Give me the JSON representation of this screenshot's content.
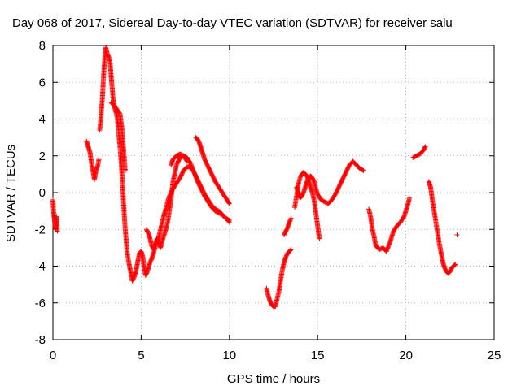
{
  "chart_data": {
    "type": "scatter",
    "title": "Day 068 of 2017, Sidereal Day-to-day VTEC variation (SDTVAR) for receiver salu",
    "xlabel": "GPS time / hours",
    "ylabel": "SDTVAR / TECUs",
    "xlim": [
      0,
      25
    ],
    "ylim": [
      -8,
      8
    ],
    "xticks": [
      0,
      5,
      10,
      15,
      20,
      25
    ],
    "yticks": [
      -8,
      -6,
      -4,
      -2,
      0,
      2,
      4,
      6,
      8
    ],
    "grid": true,
    "marker": "+",
    "color": "#ff0000",
    "series": [
      {
        "segments": [
          [
            [
              0.0,
              -0.4
            ],
            [
              0.05,
              -1.2
            ],
            [
              0.1,
              -1.6
            ],
            [
              0.15,
              -2.0
            ],
            [
              0.2,
              -1.3
            ],
            [
              0.25,
              -2.1
            ]
          ],
          [
            [
              1.9,
              2.8
            ],
            [
              2.0,
              2.5
            ],
            [
              2.1,
              2.2
            ],
            [
              2.2,
              1.5
            ],
            [
              2.3,
              1.0
            ],
            [
              2.35,
              0.7
            ],
            [
              2.45,
              1.2
            ],
            [
              2.55,
              1.5
            ],
            [
              2.6,
              1.8
            ]
          ],
          [
            [
              2.65,
              3.4
            ],
            [
              2.7,
              3.8
            ],
            [
              2.75,
              4.5
            ],
            [
              2.8,
              5.1
            ],
            [
              2.85,
              6.0
            ],
            [
              2.9,
              6.8
            ],
            [
              2.95,
              7.4
            ],
            [
              3.0,
              7.9
            ],
            [
              3.1,
              7.5
            ],
            [
              3.2,
              7.3
            ],
            [
              3.25,
              7.0
            ],
            [
              3.3,
              6.3
            ],
            [
              3.35,
              5.8
            ],
            [
              3.4,
              5.2
            ],
            [
              3.45,
              4.9
            ],
            [
              3.5,
              4.6
            ],
            [
              3.6,
              4.3
            ],
            [
              3.65,
              4.0
            ],
            [
              3.7,
              3.6
            ],
            [
              3.75,
              3.0
            ],
            [
              3.8,
              2.5
            ],
            [
              3.85,
              1.9
            ],
            [
              3.9,
              1.2
            ],
            [
              3.95,
              0.4
            ],
            [
              4.0,
              -0.5
            ],
            [
              4.05,
              -1.3
            ],
            [
              4.1,
              -2.0
            ],
            [
              4.15,
              -2.6
            ],
            [
              4.2,
              -3.2
            ],
            [
              4.3,
              -3.8
            ],
            [
              4.4,
              -4.3
            ],
            [
              4.5,
              -4.8
            ],
            [
              4.6,
              -4.6
            ],
            [
              4.7,
              -4.3
            ],
            [
              4.8,
              -3.8
            ],
            [
              4.9,
              -3.3
            ],
            [
              5.0,
              -3.2
            ],
            [
              5.1,
              -3.5
            ],
            [
              5.15,
              -4.0
            ],
            [
              5.25,
              -4.5
            ],
            [
              5.35,
              -4.3
            ],
            [
              5.5,
              -3.8
            ],
            [
              5.6,
              -3.6
            ],
            [
              5.7,
              -3.3
            ],
            [
              5.85,
              -2.8
            ],
            [
              6.0,
              -2.4
            ],
            [
              6.2,
              -1.6
            ],
            [
              6.3,
              -1.2
            ],
            [
              6.4,
              -0.9
            ],
            [
              6.5,
              -0.5
            ],
            [
              6.6,
              -0.2
            ],
            [
              6.8,
              0.2
            ],
            [
              7.0,
              0.5
            ],
            [
              7.2,
              0.8
            ],
            [
              7.4,
              1.2
            ],
            [
              7.6,
              1.4
            ],
            [
              7.8,
              1.4
            ],
            [
              8.0,
              1.1
            ],
            [
              8.2,
              0.6
            ],
            [
              8.4,
              0.2
            ],
            [
              8.6,
              -0.2
            ],
            [
              8.8,
              -0.5
            ],
            [
              9.0,
              -0.8
            ],
            [
              9.2,
              -1.0
            ],
            [
              9.4,
              -1.1
            ],
            [
              9.6,
              -1.2
            ],
            [
              9.8,
              -1.4
            ],
            [
              10.0,
              -1.6
            ]
          ],
          [
            [
              3.3,
              4.9
            ],
            [
              3.5,
              4.7
            ],
            [
              3.8,
              4.3
            ],
            [
              3.9,
              3.6
            ],
            [
              3.95,
              3.0
            ],
            [
              4.0,
              2.4
            ],
            [
              4.05,
              1.8
            ],
            [
              4.1,
              1.2
            ]
          ],
          [
            [
              5.3,
              -2.0
            ],
            [
              5.4,
              -2.2
            ],
            [
              5.5,
              -2.5
            ],
            [
              5.6,
              -2.9
            ],
            [
              5.7,
              -3.1
            ],
            [
              5.8,
              -2.8
            ],
            [
              5.9,
              -2.5
            ],
            [
              6.0,
              -2.7
            ],
            [
              6.1,
              -3.0
            ],
            [
              6.2,
              -2.6
            ],
            [
              6.4,
              -2.0
            ],
            [
              6.5,
              -1.6
            ],
            [
              6.6,
              -1.0
            ],
            [
              6.7,
              -0.3
            ],
            [
              6.8,
              0.6
            ],
            [
              6.9,
              1.0
            ],
            [
              7.0,
              1.5
            ],
            [
              7.2,
              1.9
            ],
            [
              7.4,
              2.0
            ],
            [
              7.6,
              1.9
            ],
            [
              7.8,
              1.6
            ],
            [
              8.0,
              1.1
            ],
            [
              8.2,
              0.7
            ],
            [
              8.4,
              0.3
            ],
            [
              8.6,
              -0.1
            ],
            [
              8.8,
              -0.4
            ],
            [
              9.0,
              -0.7
            ],
            [
              9.2,
              -0.9
            ],
            [
              9.4,
              -1.0
            ],
            [
              9.6,
              -1.2
            ],
            [
              9.8,
              -1.4
            ],
            [
              10.0,
              -1.5
            ]
          ],
          [
            [
              6.7,
              1.5
            ],
            [
              6.8,
              1.8
            ],
            [
              7.0,
              2.0
            ],
            [
              7.2,
              2.1
            ],
            [
              7.4,
              2.0
            ],
            [
              7.6,
              1.7
            ]
          ],
          [
            [
              8.1,
              3.0
            ],
            [
              8.2,
              2.9
            ],
            [
              8.3,
              2.7
            ],
            [
              8.4,
              2.4
            ],
            [
              8.5,
              2.1
            ],
            [
              8.6,
              1.8
            ],
            [
              8.8,
              1.4
            ],
            [
              9.0,
              1.0
            ],
            [
              9.2,
              0.6
            ],
            [
              9.4,
              0.3
            ],
            [
              9.6,
              0.0
            ],
            [
              9.8,
              -0.3
            ],
            [
              10.0,
              -0.6
            ]
          ],
          [
            [
              12.1,
              -5.2
            ],
            [
              12.2,
              -5.6
            ],
            [
              12.3,
              -5.9
            ],
            [
              12.4,
              -6.1
            ],
            [
              12.5,
              -6.2
            ],
            [
              12.6,
              -6.2
            ],
            [
              12.7,
              -5.8
            ],
            [
              12.8,
              -5.4
            ],
            [
              12.9,
              -4.8
            ],
            [
              13.0,
              -4.2
            ],
            [
              13.1,
              -3.8
            ],
            [
              13.2,
              -3.5
            ],
            [
              13.3,
              -3.3
            ],
            [
              13.4,
              -3.2
            ],
            [
              13.5,
              -3.1
            ]
          ],
          [
            [
              13.1,
              -2.3
            ],
            [
              13.2,
              -2.1
            ],
            [
              13.3,
              -1.9
            ],
            [
              13.4,
              -1.6
            ],
            [
              13.5,
              -1.4
            ]
          ],
          [
            [
              13.7,
              -0.8
            ],
            [
              13.8,
              -0.2
            ],
            [
              13.9,
              0.4
            ],
            [
              14.0,
              0.8
            ],
            [
              14.1,
              1.0
            ],
            [
              14.2,
              1.1
            ],
            [
              14.3,
              1.0
            ],
            [
              14.4,
              0.9
            ],
            [
              14.5,
              0.6
            ],
            [
              14.6,
              0.3
            ],
            [
              14.7,
              0.0
            ],
            [
              14.8,
              -0.4
            ],
            [
              14.9,
              -1.1
            ],
            [
              15.0,
              -1.8
            ],
            [
              15.1,
              -2.5
            ]
          ],
          [
            [
              13.8,
              0.3
            ],
            [
              13.9,
              0.0
            ],
            [
              14.0,
              -0.3
            ],
            [
              14.1,
              -0.2
            ],
            [
              14.2,
              0.0
            ],
            [
              14.3,
              0.3
            ],
            [
              14.4,
              0.6
            ],
            [
              14.5,
              0.8
            ],
            [
              14.6,
              0.9
            ],
            [
              14.7,
              0.8
            ],
            [
              14.8,
              0.6
            ],
            [
              14.9,
              0.2
            ],
            [
              15.0,
              -0.1
            ],
            [
              15.2,
              -0.4
            ],
            [
              15.4,
              -0.5
            ],
            [
              15.6,
              -0.6
            ],
            [
              15.8,
              -0.4
            ],
            [
              16.0,
              -0.1
            ],
            [
              16.2,
              0.3
            ],
            [
              16.4,
              0.7
            ],
            [
              16.6,
              1.1
            ],
            [
              16.8,
              1.5
            ],
            [
              17.0,
              1.7
            ],
            [
              17.2,
              1.5
            ],
            [
              17.4,
              1.3
            ],
            [
              17.6,
              1.2
            ]
          ],
          [
            [
              17.9,
              -0.9
            ],
            [
              18.0,
              -1.3
            ],
            [
              18.1,
              -2.0
            ],
            [
              18.2,
              -2.4
            ],
            [
              18.3,
              -2.9
            ],
            [
              18.5,
              -3.1
            ],
            [
              18.7,
              -3.0
            ],
            [
              18.9,
              -3.2
            ],
            [
              19.1,
              -2.7
            ],
            [
              19.3,
              -2.1
            ],
            [
              19.5,
              -1.8
            ],
            [
              19.7,
              -1.6
            ],
            [
              19.9,
              -1.3
            ],
            [
              20.1,
              -0.7
            ],
            [
              20.2,
              -0.3
            ]
          ],
          [
            [
              20.4,
              1.9
            ],
            [
              20.6,
              2.0
            ],
            [
              20.8,
              2.1
            ],
            [
              21.0,
              2.3
            ],
            [
              21.1,
              2.5
            ]
          ],
          [
            [
              21.3,
              0.6
            ],
            [
              21.4,
              0.3
            ],
            [
              21.5,
              -0.4
            ],
            [
              21.6,
              -1.0
            ],
            [
              21.7,
              -1.6
            ],
            [
              21.8,
              -2.2
            ],
            [
              21.9,
              -2.8
            ],
            [
              22.0,
              -3.3
            ],
            [
              22.1,
              -3.8
            ],
            [
              22.2,
              -4.1
            ],
            [
              22.3,
              -4.3
            ],
            [
              22.4,
              -4.4
            ],
            [
              22.5,
              -4.3
            ],
            [
              22.6,
              -4.1
            ],
            [
              22.7,
              -4.0
            ],
            [
              22.8,
              -3.9
            ]
          ],
          [
            [
              22.9,
              -2.3
            ]
          ]
        ]
      }
    ]
  }
}
